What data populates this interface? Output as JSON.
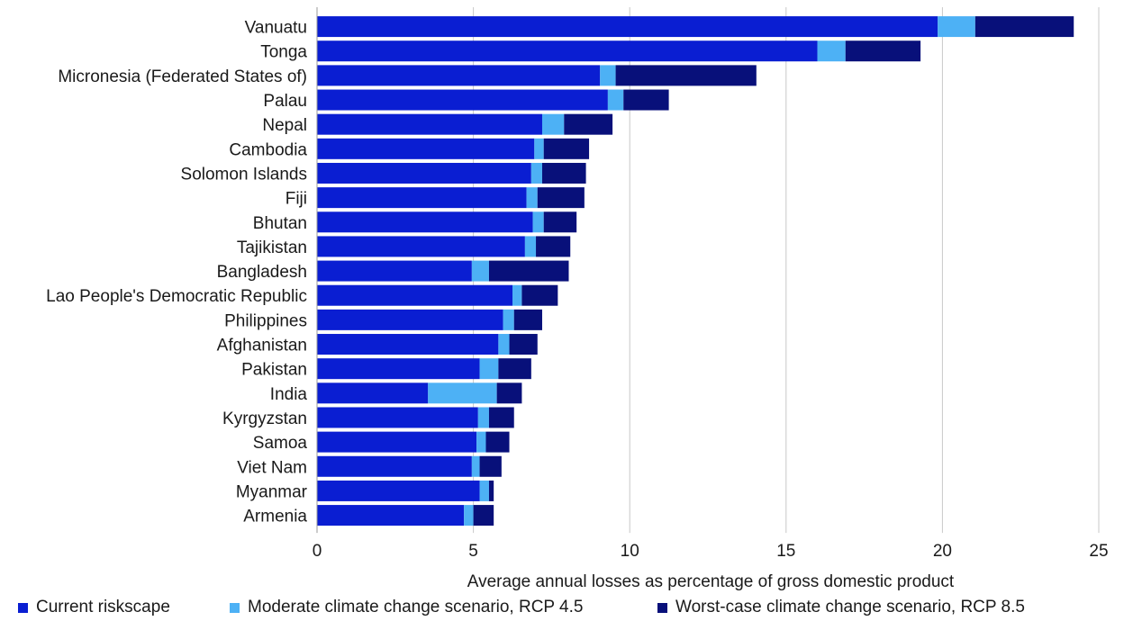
{
  "chart_data": {
    "type": "bar",
    "orientation": "horizontal",
    "stacked": true,
    "title": "",
    "xlabel": "Average annual losses as percentage of gross domestic product",
    "ylabel": "",
    "xlim": [
      0,
      25
    ],
    "xticks": [
      "0",
      "5",
      "10",
      "15",
      "20",
      "25"
    ],
    "grid": "vertical",
    "legend_position": "bottom",
    "categories": [
      "Vanuatu",
      "Tonga",
      "Micronesia (Federated States of)",
      "Palau",
      "Nepal",
      "Cambodia",
      "Solomon Islands",
      "Fiji",
      "Bhutan",
      "Tajikistan",
      "Bangladesh",
      "Lao People's Democratic Republic",
      "Philippines",
      "Afghanistan",
      "Pakistan",
      "India",
      "Kyrgyzstan",
      "Samoa",
      "Viet Nam",
      "Myanmar",
      "Armenia"
    ],
    "series": [
      {
        "name": "Current riskscape",
        "color": "#0a1ed2",
        "values": [
          19.85,
          16.0,
          9.05,
          9.3,
          7.2,
          6.95,
          6.85,
          6.7,
          6.9,
          6.65,
          4.95,
          6.25,
          5.95,
          5.8,
          5.2,
          3.55,
          5.15,
          5.1,
          4.95,
          5.2,
          4.7
        ]
      },
      {
        "name": "Moderate climate change scenario, RCP 4.5",
        "color": "#4db1f5",
        "values": [
          1.2,
          0.9,
          0.5,
          0.5,
          0.7,
          0.3,
          0.35,
          0.35,
          0.35,
          0.35,
          0.55,
          0.3,
          0.35,
          0.35,
          0.6,
          2.2,
          0.35,
          0.3,
          0.25,
          0.3,
          0.3
        ]
      },
      {
        "name": "Worst-case climate change scenario, RCP 8.5",
        "color": "#08107a",
        "values": [
          3.15,
          2.4,
          4.5,
          1.45,
          1.55,
          1.45,
          1.4,
          1.5,
          1.05,
          1.1,
          2.55,
          1.15,
          0.9,
          0.9,
          1.05,
          0.8,
          0.8,
          0.75,
          0.7,
          0.15,
          0.65
        ]
      }
    ]
  }
}
